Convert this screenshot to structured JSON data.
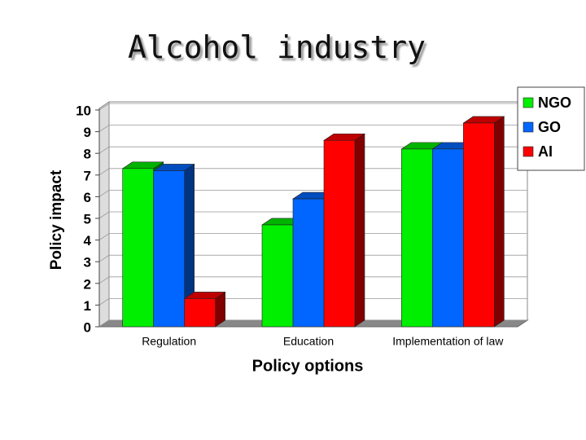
{
  "chart_data": {
    "type": "bar3d",
    "title": "Alcohol industry",
    "y_label": "Policy impact",
    "x_label": "Policy options",
    "categories": [
      "Regulation",
      "Education",
      "Implementation of law"
    ],
    "series": [
      {
        "name": "NGO",
        "color": "#00ee00",
        "values": [
          7.3,
          4.7,
          8.2
        ]
      },
      {
        "name": "GO",
        "color": "#0066ff",
        "values": [
          7.2,
          5.9,
          8.2
        ]
      },
      {
        "name": "AI",
        "color": "#ff0000",
        "values": [
          1.3,
          8.6,
          9.4
        ]
      }
    ],
    "ylim": [
      0,
      10
    ],
    "yticks": [
      0,
      1,
      2,
      3,
      4,
      5,
      6,
      7,
      8,
      9,
      10
    ],
    "grid": true,
    "legend": "top-right"
  }
}
